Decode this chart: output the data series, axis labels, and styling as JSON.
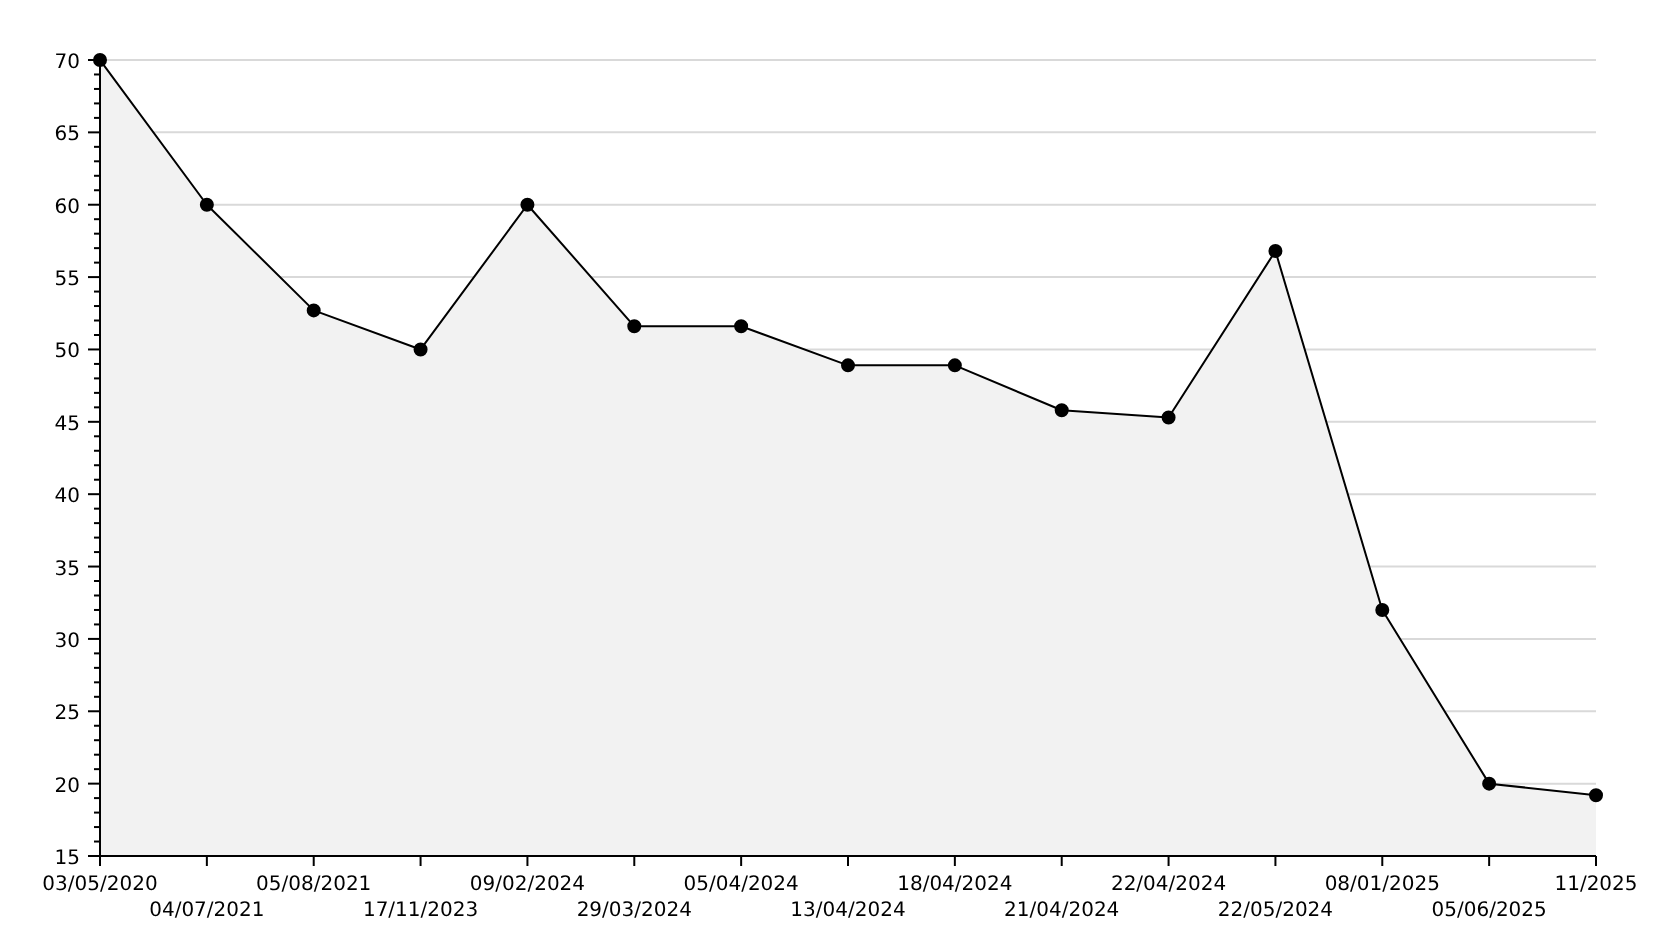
{
  "chart_data": {
    "type": "area",
    "categories": [
      "03/05/2020",
      "04/07/2021",
      "05/08/2021",
      "17/11/2023",
      "09/02/2024",
      "29/03/2024",
      "05/04/2024",
      "13/04/2024",
      "18/04/2024",
      "21/04/2024",
      "22/04/2024",
      "22/05/2024",
      "08/01/2025",
      "05/06/2025",
      "11/2025"
    ],
    "series": [
      {
        "color": "#000000",
        "values": [
          70,
          60,
          52.7,
          50,
          60,
          51.6,
          51.6,
          48.9,
          48.9,
          45.8,
          45.3,
          56.8,
          32,
          20,
          19.2
        ]
      }
    ],
    "ylim": [
      15,
      70
    ],
    "yticks": [
      15,
      {
        "value": 16,
        "label": null
      },
      {
        "value": 17,
        "label": null
      },
      {
        "value": 18,
        "label": null
      },
      {
        "value": 19,
        "label": null
      },
      20,
      {
        "value": 21,
        "label": null
      },
      {
        "value": 22,
        "label": null
      },
      {
        "value": 23,
        "label": null
      },
      {
        "value": 24,
        "label": null
      },
      25,
      {
        "value": 26,
        "label": null
      },
      {
        "value": 27,
        "label": null
      },
      {
        "value": 28,
        "label": null
      },
      {
        "value": 29,
        "label": null
      },
      30,
      {
        "value": 31,
        "label": null
      },
      {
        "value": 32,
        "label": null
      },
      {
        "value": 33,
        "label": null
      },
      {
        "value": 34,
        "label": null
      },
      35,
      {
        "value": 36,
        "label": null
      },
      {
        "value": 37,
        "label": null
      },
      {
        "value": 38,
        "label": null
      },
      {
        "value": 39,
        "label": null
      },
      40,
      {
        "value": 41,
        "label": null
      },
      {
        "value": 42,
        "label": null
      },
      {
        "value": 43,
        "label": null
      },
      {
        "value": 44,
        "label": null
      },
      45,
      {
        "value": 46,
        "label": null
      },
      {
        "value": 47,
        "label": null
      },
      {
        "value": 48,
        "label": null
      },
      {
        "value": 49,
        "label": null
      },
      50,
      {
        "value": 51,
        "label": null
      },
      {
        "value": 52,
        "label": null
      },
      {
        "value": 53,
        "label": null
      },
      {
        "value": 54,
        "label": null
      },
      55,
      {
        "value": 56,
        "label": null
      },
      {
        "value": 57,
        "label": null
      },
      {
        "value": 58,
        "label": null
      },
      {
        "value": 59,
        "label": null
      },
      60,
      {
        "value": 61,
        "label": null
      },
      {
        "value": 62,
        "label": null
      },
      {
        "value": 63,
        "label": null
      },
      {
        "value": 64,
        "label": null
      },
      65,
      {
        "value": 66,
        "label": null
      },
      {
        "value": 67,
        "label": null
      },
      {
        "value": 68,
        "label": null
      },
      {
        "value": 69,
        "label": null
      },
      70
    ],
    "grid": "y",
    "marker": "circle",
    "line_style": "solid"
  }
}
